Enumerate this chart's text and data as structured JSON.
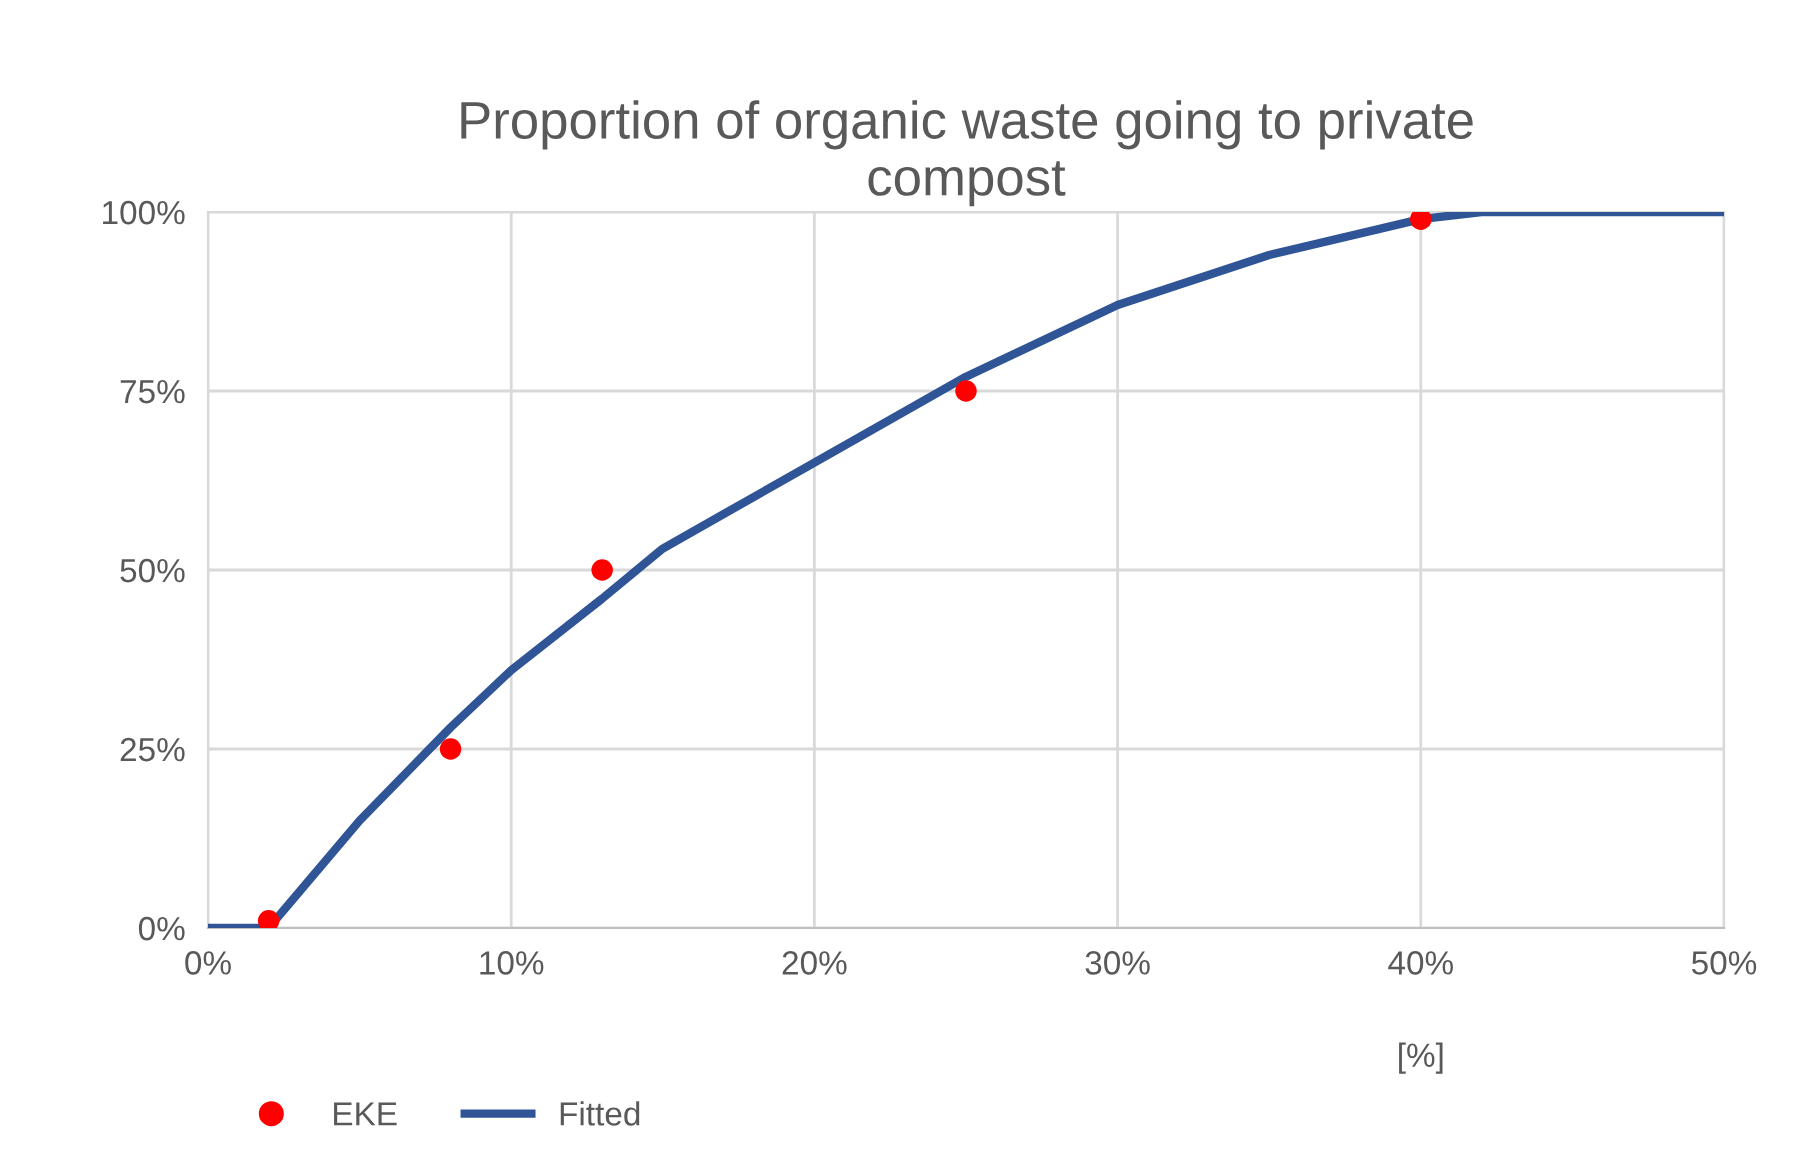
{
  "chart_data": {
    "type": "line",
    "title": "Proportion of organic waste going to private\ncompost",
    "xlabel": "[%]",
    "series": [
      {
        "name": "EKE",
        "type": "scatter",
        "color": "#ff0000",
        "marker": "circle",
        "x": [
          2,
          8,
          13,
          25,
          40
        ],
        "values": [
          1,
          25,
          50,
          75,
          99
        ]
      },
      {
        "name": "Fitted",
        "color": "#2f5597",
        "marker": "none",
        "x": [
          0,
          2,
          5,
          8,
          10,
          13,
          15,
          20,
          25,
          30,
          35,
          40,
          42,
          50
        ],
        "values": [
          0,
          0,
          15,
          28,
          36,
          46,
          53,
          65,
          77,
          87,
          94,
          99,
          100,
          100
        ]
      }
    ],
    "xlim": [
      0,
      50
    ],
    "ylim": [
      0,
      100
    ],
    "xticks": [
      {
        "value": 0,
        "label": "0%"
      },
      {
        "value": 10,
        "label": "10%"
      },
      {
        "value": 20,
        "label": "20%"
      },
      {
        "value": 30,
        "label": "30%"
      },
      {
        "value": 40,
        "label": "40%"
      },
      {
        "value": 50,
        "label": "50%"
      }
    ],
    "yticks": [
      {
        "value": 0,
        "label": "0%"
      },
      {
        "value": 25,
        "label": "25%"
      },
      {
        "value": 50,
        "label": "50%"
      },
      {
        "value": 75,
        "label": "75%"
      },
      {
        "value": 100,
        "label": "100%"
      }
    ],
    "grid": true,
    "legend": "bottom left"
  }
}
